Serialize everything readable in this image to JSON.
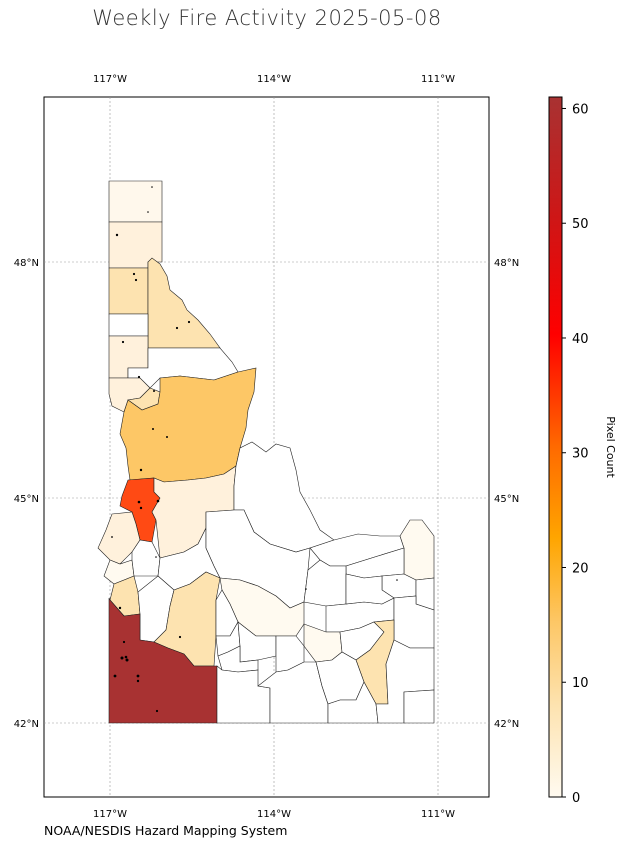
{
  "title": "Weekly Fire Activity 2025-05-08",
  "credit": "NOAA/NESDIS Hazard Mapping System",
  "colorbar": {
    "label": "Pixel Count",
    "ticks": [
      "0",
      "10",
      "20",
      "30",
      "40",
      "50",
      "60"
    ],
    "min": 0,
    "max": 61,
    "colormap": [
      "#fffaf0",
      "#fde3b0",
      "#fdc766",
      "#ffa500",
      "#ff6a00",
      "#ff0000",
      "#d01515",
      "#a83232"
    ]
  },
  "axes": {
    "lon_labels": [
      "117°W",
      "114°W",
      "111°W"
    ],
    "lat_labels": [
      "48°N",
      "45°N",
      "42°N"
    ],
    "lon_range": [
      -118.2,
      -110.1
    ],
    "lat_range": [
      41.0,
      49.9
    ]
  },
  "chart_data": {
    "type": "choropleth",
    "region": "Idaho counties",
    "value_name": "Pixel Count",
    "colors": {
      "max": "#a83232",
      "high": "#ff4a14",
      "mid": "#fdc766",
      "low": "#fde3b0",
      "verylow": "#fff1dc",
      "trace": "#fffaf0",
      "none": "#ffffff"
    }
  }
}
